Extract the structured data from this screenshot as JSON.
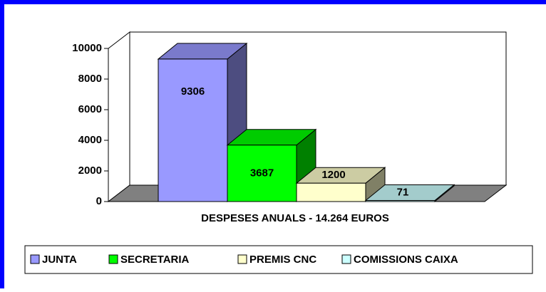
{
  "chart_data": {
    "type": "bar3d",
    "title": "DESPESES ANUALS - 14.264 EUROS",
    "series": [
      {
        "name": "JUNTA",
        "color": "#9999ff",
        "values": [
          9306
        ]
      },
      {
        "name": "SECRETARIA",
        "color": "#00ff00",
        "values": [
          3687
        ]
      },
      {
        "name": "PREMIS CNC",
        "color": "#ffffcc",
        "values": [
          1200
        ]
      },
      {
        "name": "COMISSIONS CAIXA",
        "color": "#ccffff",
        "values": [
          71
        ]
      }
    ],
    "ylim": [
      0,
      10000
    ],
    "yticks": [
      0,
      2000,
      4000,
      6000,
      8000,
      10000
    ],
    "legend": "bottom",
    "grid": false
  }
}
